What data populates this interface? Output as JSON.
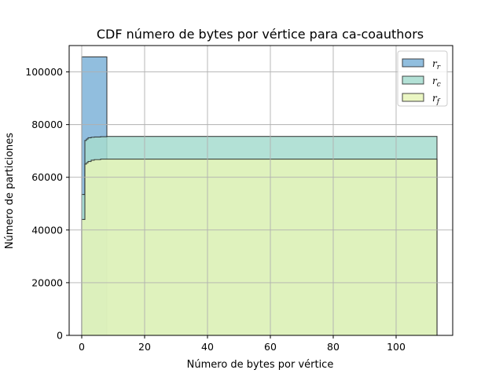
{
  "chart_data": {
    "type": "area",
    "title": "CDF número de bytes por vértice para ca-coauthors",
    "xlabel": "Número de bytes por vértice",
    "ylabel": "Número de particiones",
    "xlim": [
      -4,
      118
    ],
    "ylim": [
      0,
      110000
    ],
    "x_ticks": [
      0,
      20,
      40,
      60,
      80,
      100
    ],
    "y_ticks": [
      0,
      20000,
      40000,
      60000,
      80000,
      100000
    ],
    "x_tick_labels": [
      "0",
      "20",
      "40",
      "60",
      "80",
      "100"
    ],
    "y_tick_labels": [
      "0",
      "20000",
      "40000",
      "60000",
      "80000",
      "100000"
    ],
    "grid": true,
    "legend_position": "top-right",
    "series": [
      {
        "name": "r_r",
        "legend_text": "r",
        "legend_sub": "r",
        "color": "#7eb3d8",
        "step_x": [
          0,
          8
        ],
        "step_y": [
          105700
        ]
      },
      {
        "name": "r_c",
        "legend_text": "r",
        "legend_sub": "c",
        "color": "#a6dccf",
        "step_x": [
          0,
          1,
          1.5,
          2,
          3,
          4,
          6,
          8,
          113
        ],
        "step_y": [
          53500,
          74000,
          74500,
          75000,
          75200,
          75300,
          75400,
          75500
        ]
      },
      {
        "name": "r_f",
        "legend_text": "r",
        "legend_sub": "f",
        "color": "#e6f5b8",
        "step_x": [
          0,
          0.5,
          1,
          1.5,
          2,
          3,
          4,
          6,
          113
        ],
        "step_y": [
          44000,
          44000,
          65000,
          65500,
          66000,
          66500,
          66700,
          66900
        ]
      }
    ]
  }
}
